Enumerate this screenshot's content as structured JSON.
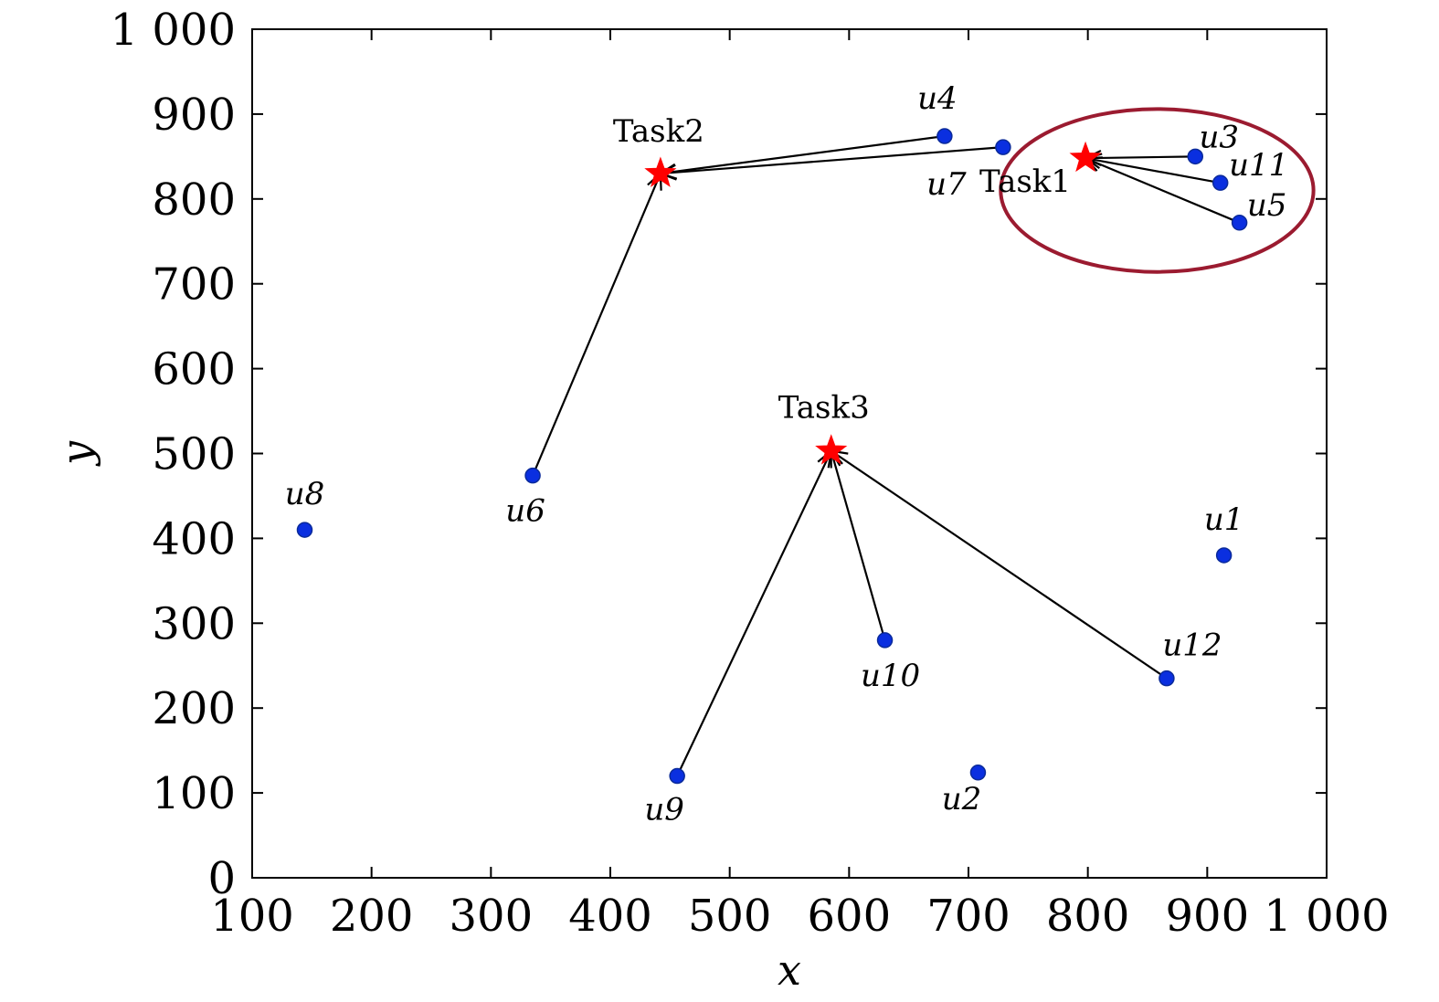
{
  "chart_data": {
    "type": "scatter",
    "xlabel": "x",
    "ylabel": "y",
    "xlim": [
      100,
      1000
    ],
    "ylim": [
      0,
      1000
    ],
    "xticks": [
      100,
      200,
      300,
      400,
      500,
      600,
      700,
      800,
      900,
      1000
    ],
    "xtick_labels": [
      "100",
      "200",
      "300",
      "400",
      "500",
      "600",
      "700",
      "800",
      "900",
      "1 000"
    ],
    "yticks": [
      0,
      100,
      200,
      300,
      400,
      500,
      600,
      700,
      800,
      900,
      1000
    ],
    "ytick_labels": [
      "0",
      "100",
      "200",
      "300",
      "400",
      "500",
      "600",
      "700",
      "800",
      "900",
      "1 000"
    ],
    "grid": false,
    "users": [
      {
        "label": "u1",
        "x": 914,
        "y": 380
      },
      {
        "label": "u2",
        "x": 708,
        "y": 124
      },
      {
        "label": "u3",
        "x": 890,
        "y": 850
      },
      {
        "label": "u4",
        "x": 680,
        "y": 874
      },
      {
        "label": "u5",
        "x": 927,
        "y": 772
      },
      {
        "label": "u6",
        "x": 335,
        "y": 474
      },
      {
        "label": "u7",
        "x": 729,
        "y": 861
      },
      {
        "label": "u8",
        "x": 144,
        "y": 410
      },
      {
        "label": "u9",
        "x": 456,
        "y": 120
      },
      {
        "label": "u10",
        "x": 630,
        "y": 280
      },
      {
        "label": "u11",
        "x": 911,
        "y": 819
      },
      {
        "label": "u12",
        "x": 866,
        "y": 235
      }
    ],
    "tasks": [
      {
        "label": "Task1",
        "x": 798,
        "y": 848
      },
      {
        "label": "Task2",
        "x": 442,
        "y": 830
      },
      {
        "label": "Task3",
        "x": 585,
        "y": 503
      }
    ],
    "assignments": [
      {
        "from": "u3",
        "to": "Task1"
      },
      {
        "from": "u11",
        "to": "Task1"
      },
      {
        "from": "u5",
        "to": "Task1"
      },
      {
        "from": "u4",
        "to": "Task2"
      },
      {
        "from": "u7",
        "to": "Task2"
      },
      {
        "from": "u6",
        "to": "Task2"
      },
      {
        "from": "u9",
        "to": "Task3"
      },
      {
        "from": "u10",
        "to": "Task3"
      },
      {
        "from": "u12",
        "to": "Task3"
      }
    ],
    "highlight_ellipse": {
      "cx": 858,
      "cy": 810,
      "rx": 131,
      "ry": 96
    },
    "colors": {
      "user_marker": "#0a2fe0",
      "user_marker_edge": "#0a2a9a",
      "task_marker": "#ff0000",
      "arrow": "#000000",
      "ellipse": "#9b1b30"
    }
  }
}
